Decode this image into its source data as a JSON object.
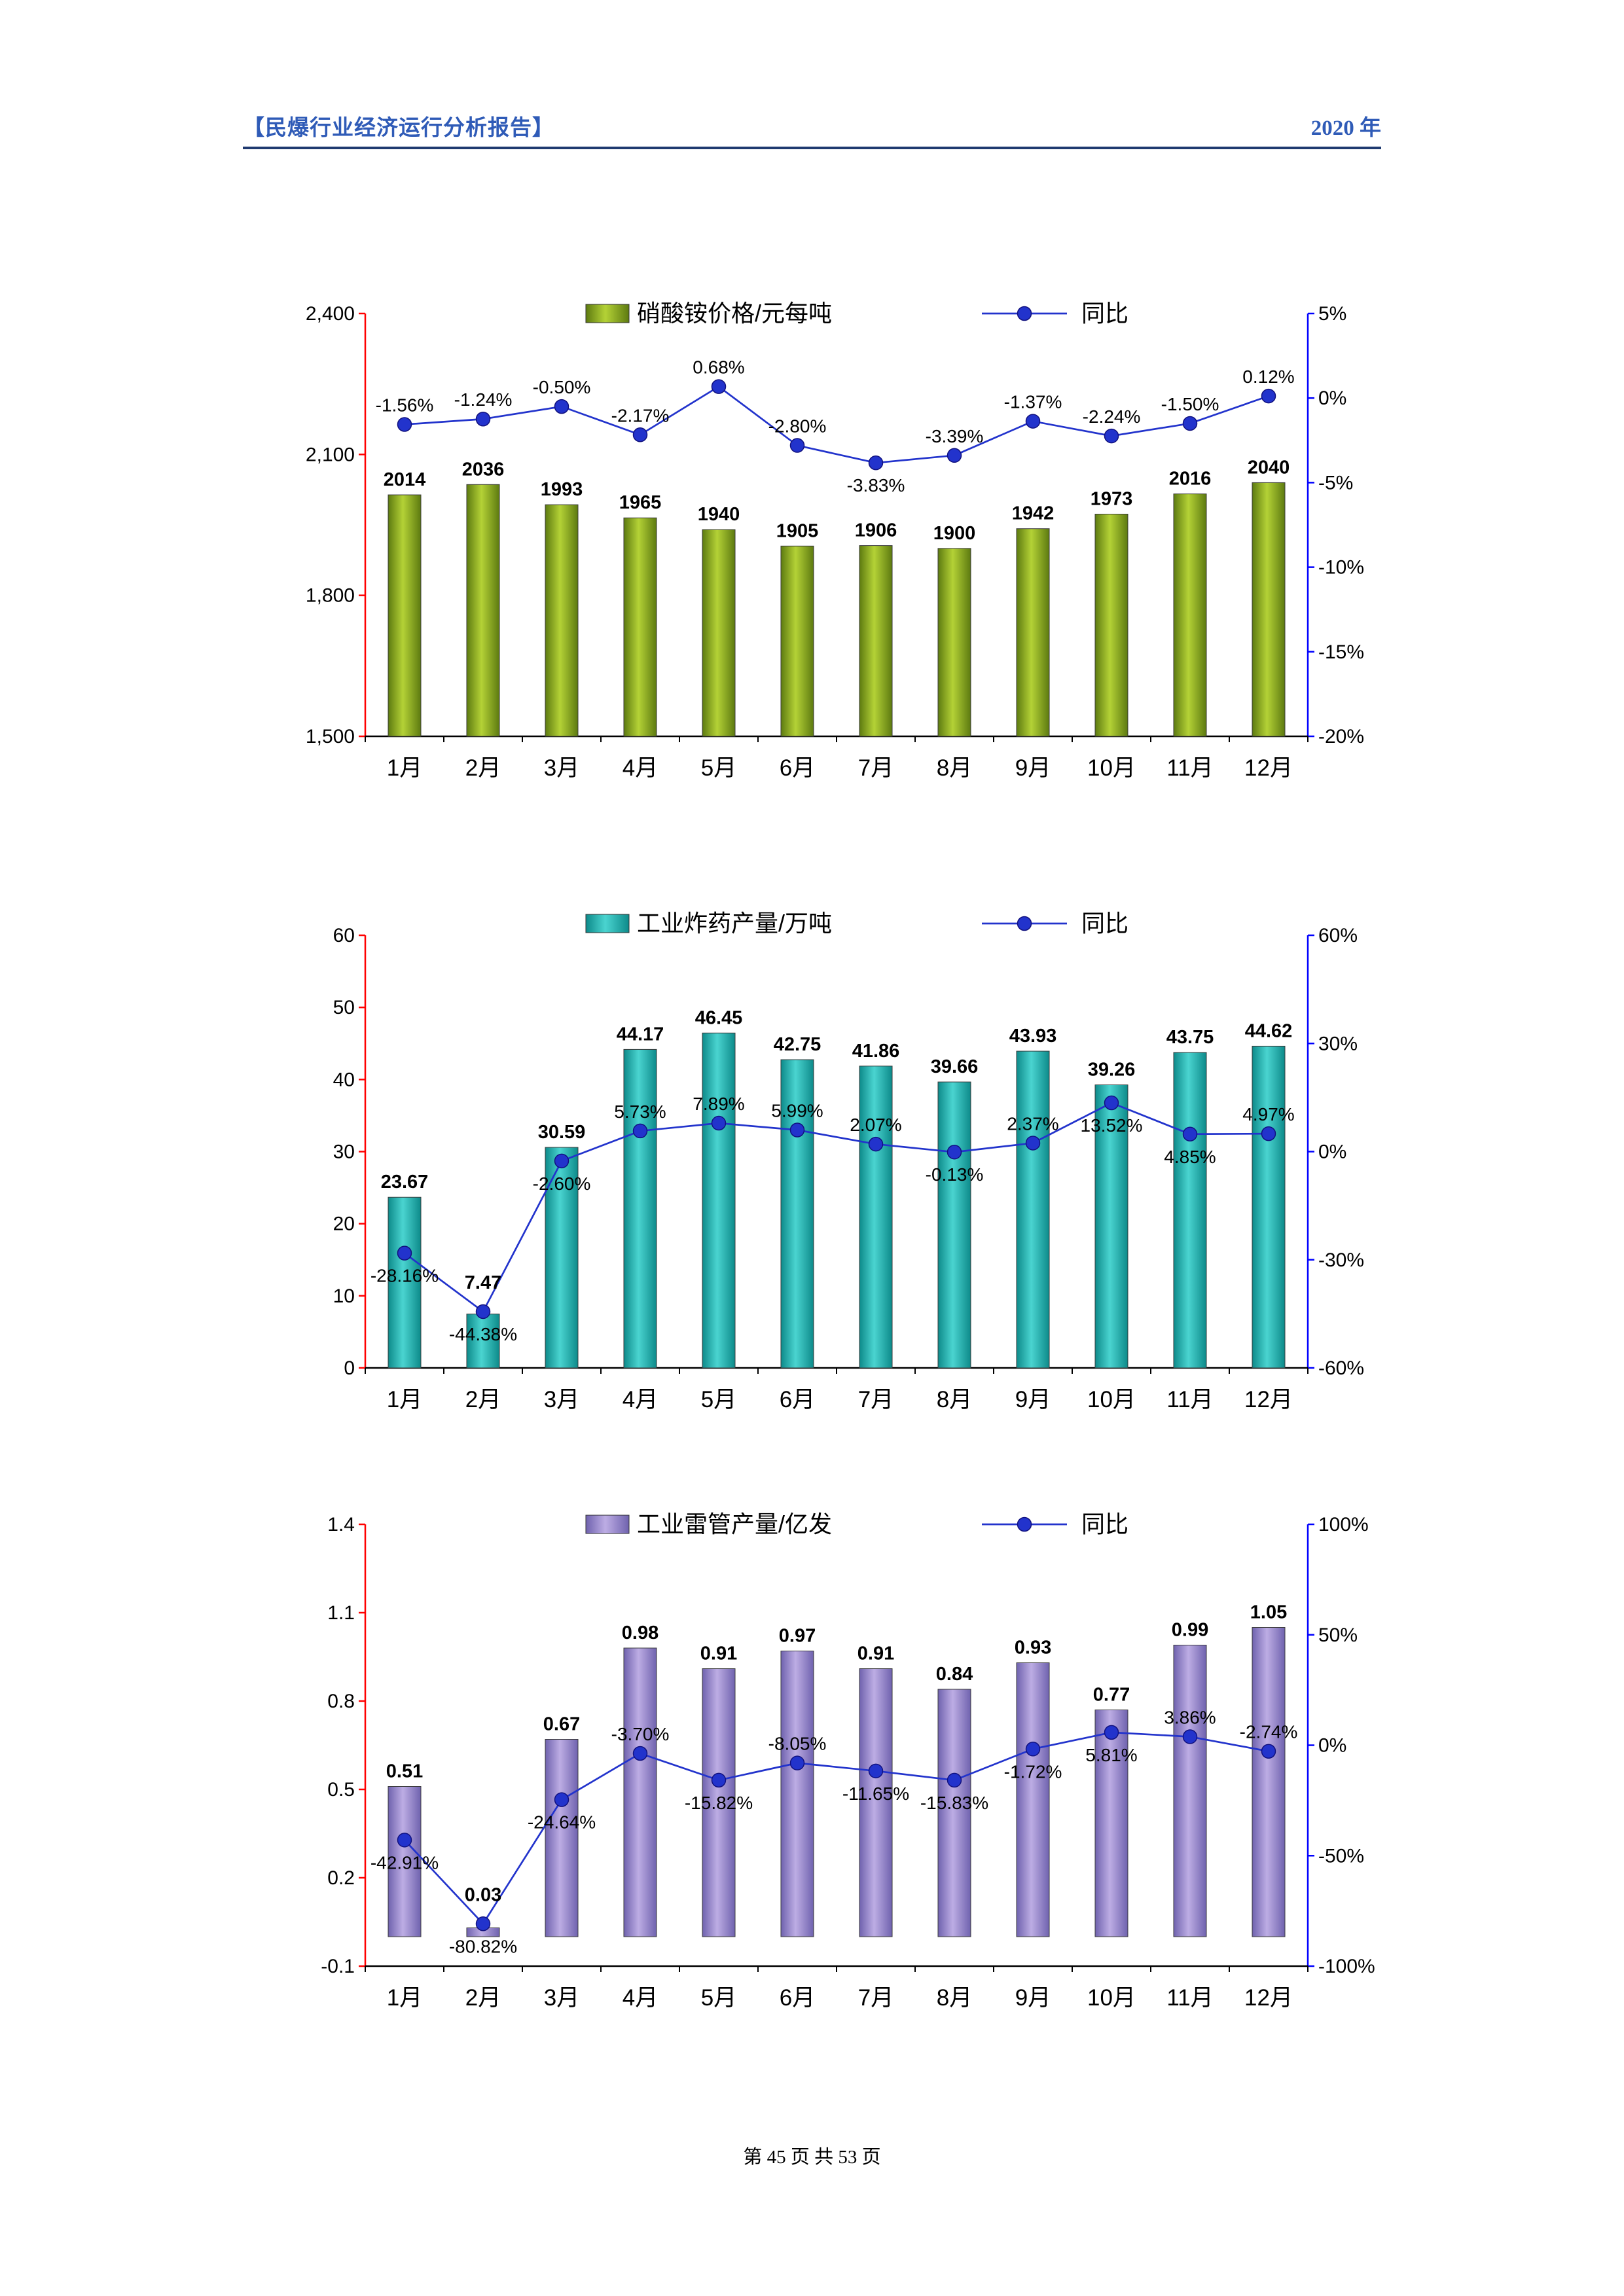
{
  "header": {
    "title": "【民爆行业经济运行分析报告】",
    "year": "2020 年"
  },
  "footer": "第 45 页 共 53 页",
  "chart_data": [
    {
      "type": "bar+line",
      "title": "硝酸铵价格/元每吨",
      "legend": {
        "bar": "硝酸铵价格/元每吨",
        "line": "同比"
      },
      "categories": [
        "1月",
        "2月",
        "3月",
        "4月",
        "5月",
        "6月",
        "7月",
        "8月",
        "9月",
        "10月",
        "11月",
        "12月"
      ],
      "bar_series": {
        "name": "硝酸铵价格/元每吨",
        "values": [
          2014,
          2036,
          1993,
          1965,
          1940,
          1905,
          1906,
          1900,
          1942,
          1973,
          2016,
          2040
        ],
        "labels": [
          "2014",
          "2036",
          "1993",
          "1965",
          "1940",
          "1905",
          "1906",
          "1900",
          "1942",
          "1973",
          "2016",
          "2040"
        ]
      },
      "line_series": {
        "name": "同比",
        "values": [
          -1.56,
          -1.24,
          -0.5,
          -2.17,
          0.68,
          -2.8,
          -3.83,
          -3.39,
          -1.37,
          -2.24,
          -1.5,
          0.12
        ],
        "labels": [
          "-1.56%",
          "-1.24%",
          "-0.50%",
          "-2.17%",
          "0.68%",
          "-2.80%",
          "-3.83%",
          "-3.39%",
          "-1.37%",
          "-2.24%",
          "-1.50%",
          "0.12%"
        ],
        "label_pos": [
          "above",
          "above",
          "above",
          "above",
          "above",
          "above",
          "below",
          "above",
          "above",
          "above",
          "above",
          "above"
        ]
      },
      "left_axis": {
        "min": 1500,
        "max": 2400,
        "color": "#FF0000",
        "ticks": [
          {
            "label": "2,400",
            "value": 2400
          },
          {
            "label": "2,100",
            "value": 2100
          },
          {
            "label": "1,800",
            "value": 1800
          },
          {
            "label": "1,500",
            "value": 1500
          }
        ]
      },
      "right_axis": {
        "min": -20,
        "max": 5,
        "color": "#0000FF",
        "ticks": [
          {
            "label": "5%",
            "value": 5
          },
          {
            "label": "0%",
            "value": 0
          },
          {
            "label": "-5%",
            "value": -5
          },
          {
            "label": "-10%",
            "value": -10
          },
          {
            "label": "-15%",
            "value": -15
          },
          {
            "label": "-20%",
            "value": -20
          }
        ]
      },
      "bar_baseline": 1500,
      "colors": {
        "bar_dark": "#5d7a10",
        "bar_light": "#b4d236",
        "line": "#2233CC"
      }
    },
    {
      "type": "bar+line",
      "title": "工业炸药产量/万吨",
      "legend": {
        "bar": "工业炸药产量/万吨",
        "line": "同比"
      },
      "categories": [
        "1月",
        "2月",
        "3月",
        "4月",
        "5月",
        "6月",
        "7月",
        "8月",
        "9月",
        "10月",
        "11月",
        "12月"
      ],
      "bar_series": {
        "name": "工业炸药产量/万吨",
        "values": [
          23.67,
          7.47,
          30.59,
          44.17,
          46.45,
          42.75,
          41.86,
          39.66,
          43.93,
          39.26,
          43.75,
          44.62
        ],
        "labels": [
          "23.67",
          "7.47",
          "30.59",
          "44.17",
          "46.45",
          "42.75",
          "41.86",
          "39.66",
          "43.93",
          "39.26",
          "43.75",
          "44.62"
        ]
      },
      "line_series": {
        "name": "同比",
        "values": [
          -28.16,
          -44.38,
          -2.6,
          5.73,
          7.89,
          5.99,
          2.07,
          -0.13,
          2.37,
          13.52,
          4.85,
          4.97
        ],
        "labels": [
          "-28.16%",
          "-44.38%",
          "-2.60%",
          "5.73%",
          "7.89%",
          "5.99%",
          "2.07%",
          "-0.13%",
          "2.37%",
          "13.52%",
          "4.85%",
          "4.97%"
        ],
        "label_pos": [
          "below",
          "below",
          "below",
          "above",
          "above",
          "above",
          "above",
          "below",
          "above",
          "below",
          "below",
          "above"
        ]
      },
      "left_axis": {
        "min": 0,
        "max": 60,
        "color": "#FF0000",
        "ticks": [
          {
            "label": "60",
            "value": 60
          },
          {
            "label": "50",
            "value": 50
          },
          {
            "label": "40",
            "value": 40
          },
          {
            "label": "30",
            "value": 30
          },
          {
            "label": "20",
            "value": 20
          },
          {
            "label": "10",
            "value": 10
          },
          {
            "label": "0",
            "value": 0
          }
        ]
      },
      "right_axis": {
        "min": -60,
        "max": 60,
        "color": "#0000FF",
        "ticks": [
          {
            "label": "60%",
            "value": 60
          },
          {
            "label": "30%",
            "value": 30
          },
          {
            "label": "0%",
            "value": 0
          },
          {
            "label": "-30%",
            "value": -30
          },
          {
            "label": "-60%",
            "value": -60
          }
        ]
      },
      "bar_baseline": 0,
      "colors": {
        "bar_dark": "#0d8a8a",
        "bar_light": "#4ad4d0",
        "line": "#2233CC"
      }
    },
    {
      "type": "bar+line",
      "title": "工业雷管产量/亿发",
      "legend": {
        "bar": "工业雷管产量/亿发",
        "line": "同比"
      },
      "categories": [
        "1月",
        "2月",
        "3月",
        "4月",
        "5月",
        "6月",
        "7月",
        "8月",
        "9月",
        "10月",
        "11月",
        "12月"
      ],
      "bar_series": {
        "name": "工业雷管产量/亿发",
        "values": [
          0.51,
          0.03,
          0.67,
          0.98,
          0.91,
          0.97,
          0.91,
          0.84,
          0.93,
          0.77,
          0.99,
          1.05
        ],
        "labels": [
          "0.51",
          "0.03",
          "0.67",
          "0.98",
          "0.91",
          "0.97",
          "0.91",
          "0.84",
          "0.93",
          "0.77",
          "0.99",
          "1.05"
        ]
      },
      "line_series": {
        "name": "同比",
        "values": [
          -42.91,
          -80.82,
          -24.64,
          -3.7,
          -15.82,
          -8.05,
          -11.65,
          -15.83,
          -1.72,
          5.81,
          3.86,
          -2.74
        ],
        "labels": [
          "-42.91%",
          "-80.82%",
          "-24.64%",
          "-3.70%",
          "-15.82%",
          "-8.05%",
          "-11.65%",
          "-15.83%",
          "-1.72%",
          "5.81%",
          "3.86%",
          "-2.74%"
        ],
        "label_pos": [
          "below",
          "below",
          "below",
          "above",
          "below",
          "above",
          "below",
          "below",
          "below",
          "below",
          "above",
          "above"
        ]
      },
      "left_axis": {
        "min": -0.1,
        "max": 1.4,
        "color": "#FF0000",
        "ticks": [
          {
            "label": "1.4",
            "value": 1.4
          },
          {
            "label": "1.1",
            "value": 1.1
          },
          {
            "label": "0.8",
            "value": 0.8
          },
          {
            "label": "0.5",
            "value": 0.5
          },
          {
            "label": "0.2",
            "value": 0.2
          },
          {
            "label": "-0.1",
            "value": -0.1
          }
        ]
      },
      "right_axis": {
        "min": -100,
        "max": 100,
        "color": "#0000FF",
        "ticks": [
          {
            "label": "100%",
            "value": 100
          },
          {
            "label": "50%",
            "value": 50
          },
          {
            "label": "0%",
            "value": 0
          },
          {
            "label": "-50%",
            "value": -50
          },
          {
            "label": "-100%",
            "value": -100
          }
        ]
      },
      "bar_baseline": 0,
      "colors": {
        "bar_dark": "#6f62ae",
        "bar_light": "#bdade4",
        "line": "#2233CC"
      }
    }
  ]
}
